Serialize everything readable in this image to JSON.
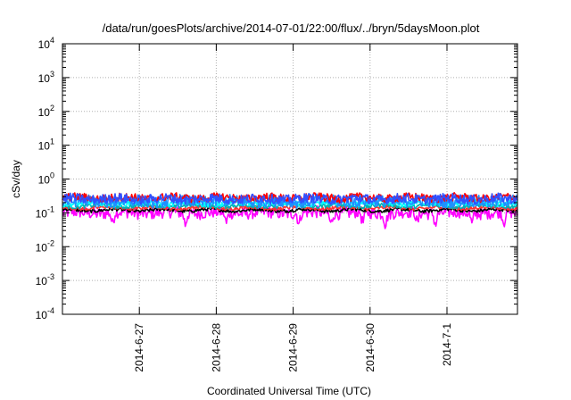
{
  "chart_data": {
    "type": "line",
    "title": "/data/run/goesPlots/archive/2014-07-01/22:00/flux/../bryn/5daysMoon.plot",
    "xlabel": "Coordinated Universal Time (UTC)",
    "ylabel": "cSv/day",
    "yscale": "log",
    "ylim": [
      0.0001,
      10000
    ],
    "xlim": [
      "2014-06-26",
      "2014-07-01"
    ],
    "grid": true,
    "legend": "none",
    "y_ticks": [
      {
        "base": "10",
        "exp": "-4"
      },
      {
        "base": "10",
        "exp": "-3"
      },
      {
        "base": "10",
        "exp": "-2"
      },
      {
        "base": "10",
        "exp": "-1"
      },
      {
        "base": "10",
        "exp": "0"
      },
      {
        "base": "10",
        "exp": "1"
      },
      {
        "base": "10",
        "exp": "2"
      },
      {
        "base": "10",
        "exp": "3"
      },
      {
        "base": "10",
        "exp": "4"
      }
    ],
    "x_ticks": [
      "2014-6-27",
      "2014-6-28",
      "2014-6-29",
      "2014-6-30",
      "2014-7-1"
    ],
    "series": [
      {
        "color": "#ff00ff",
        "median": 0.1,
        "wiggle": 0.18,
        "dips": true
      },
      {
        "color": "#000000",
        "median": 0.12,
        "wiggle": 0.05,
        "dips": false
      },
      {
        "color": "#ff3030",
        "median": 0.14,
        "wiggle": 0.05,
        "dips": false
      },
      {
        "color": "#00b0b0",
        "median": 0.16,
        "wiggle": 0.06,
        "dips": false
      },
      {
        "color": "#00ffff",
        "median": 0.19,
        "wiggle": 0.08,
        "dips": false
      },
      {
        "color": "#1e90ff",
        "median": 0.22,
        "wiggle": 0.18,
        "dips": false
      },
      {
        "color": "#ff0000",
        "median": 0.28,
        "wiggle": 0.12,
        "dips": false
      },
      {
        "color": "#3050ff",
        "median": 0.26,
        "wiggle": 0.14,
        "dips": false
      }
    ]
  }
}
